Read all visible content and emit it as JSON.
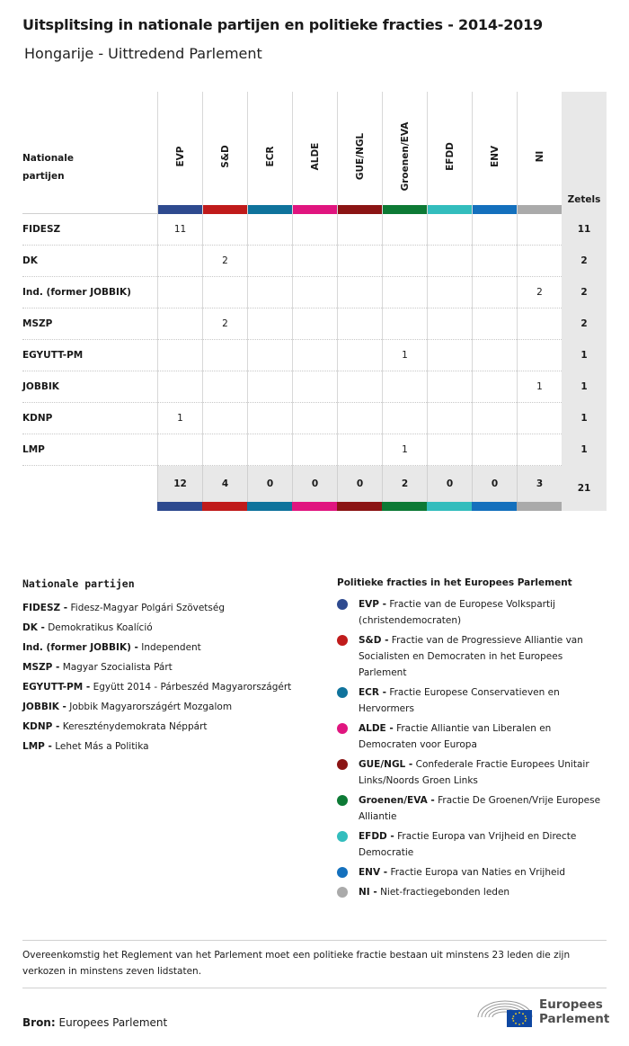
{
  "title": "Uitsplitsing in nationale partijen en politieke fracties - 2014-2019",
  "subtitle": "Hongarije - Uittredend Parlement",
  "table": {
    "row_header": "Nationale partijen",
    "total_header": "Zetels",
    "groups": [
      {
        "label": "EVP",
        "color": "#2e4a8f"
      },
      {
        "label": "S&D",
        "color": "#c01b1b"
      },
      {
        "label": "ECR",
        "color": "#0f739c"
      },
      {
        "label": "ALDE",
        "color": "#e0157f"
      },
      {
        "label": "GUE/NGL",
        "color": "#8b1414"
      },
      {
        "label": "Groenen/EVA",
        "color": "#0d7a35"
      },
      {
        "label": "EFDD",
        "color": "#33bdbd"
      },
      {
        "label": "ENV",
        "color": "#1470bd"
      },
      {
        "label": "NI",
        "color": "#aaaaaa"
      }
    ],
    "rows": [
      {
        "party": "FIDESZ",
        "values": [
          "11",
          "",
          "",
          "",
          "",
          "",
          "",
          "",
          ""
        ],
        "total": "11"
      },
      {
        "party": "DK",
        "values": [
          "",
          "2",
          "",
          "",
          "",
          "",
          "",
          "",
          ""
        ],
        "total": "2"
      },
      {
        "party": "Ind. (former JOBBIK)",
        "values": [
          "",
          "",
          "",
          "",
          "",
          "",
          "",
          "",
          "2"
        ],
        "total": "2"
      },
      {
        "party": "MSZP",
        "values": [
          "",
          "2",
          "",
          "",
          "",
          "",
          "",
          "",
          ""
        ],
        "total": "2"
      },
      {
        "party": "EGYUTT-PM",
        "values": [
          "",
          "",
          "",
          "",
          "",
          "1",
          "",
          "",
          ""
        ],
        "total": "1"
      },
      {
        "party": "JOBBIK",
        "values": [
          "",
          "",
          "",
          "",
          "",
          "",
          "",
          "",
          "1"
        ],
        "total": "1"
      },
      {
        "party": "KDNP",
        "values": [
          "1",
          "",
          "",
          "",
          "",
          "",
          "",
          "",
          ""
        ],
        "total": "1"
      },
      {
        "party": "LMP",
        "values": [
          "",
          "",
          "",
          "",
          "",
          "1",
          "",
          "",
          ""
        ],
        "total": "1"
      }
    ],
    "column_totals": [
      "12",
      "4",
      "0",
      "0",
      "0",
      "2",
      "0",
      "0",
      "3"
    ],
    "grand_total": "21"
  },
  "legend_parties": {
    "heading": "Nationale partijen",
    "items": [
      {
        "abbr": "FIDESZ -",
        "name": "Fidesz-Magyar Polgári Szövetség"
      },
      {
        "abbr": "DK -",
        "name": "Demokratikus Koalíció"
      },
      {
        "abbr": "Ind. (former JOBBIK) -",
        "name": "Independent"
      },
      {
        "abbr": "MSZP -",
        "name": "Magyar Szocialista Párt"
      },
      {
        "abbr": "EGYUTT-PM -",
        "name": "Együtt 2014 - Párbeszéd Magyarországért"
      },
      {
        "abbr": "JOBBIK -",
        "name": "Jobbik Magyarországért Mozgalom"
      },
      {
        "abbr": "KDNP -",
        "name": "Kereszténydemokrata Néppárt"
      },
      {
        "abbr": "LMP -",
        "name": "Lehet Más a Politika"
      }
    ]
  },
  "legend_groups": {
    "heading": "Politieke fracties in het Europees Parlement",
    "items": [
      {
        "abbr": "EVP -",
        "name": "Fractie van de Europese Volkspartij (christendemocraten)",
        "color": "#2e4a8f"
      },
      {
        "abbr": "S&D -",
        "name": "Fractie van de Progressieve Alliantie van Socialisten en Democraten in het Europees Parlement",
        "color": "#c01b1b"
      },
      {
        "abbr": "ECR -",
        "name": "Fractie Europese Conservatieven en Hervormers",
        "color": "#0f739c"
      },
      {
        "abbr": "ALDE -",
        "name": "Fractie Alliantie van Liberalen en Democraten voor Europa",
        "color": "#e0157f"
      },
      {
        "abbr": "GUE/NGL -",
        "name": "Confederale Fractie Europees Unitair Links/Noords Groen Links",
        "color": "#8b1414"
      },
      {
        "abbr": "Groenen/EVA -",
        "name": "Fractie De Groenen/Vrije Europese Alliantie",
        "color": "#0d7a35"
      },
      {
        "abbr": "EFDD -",
        "name": "Fractie Europa van Vrijheid en Directe Democratie",
        "color": "#33bdbd"
      },
      {
        "abbr": "ENV -",
        "name": "Fractie Europa van Naties en Vrijheid",
        "color": "#1470bd"
      },
      {
        "abbr": "NI -",
        "name": "Niet-fractiegebonden leden",
        "color": "#aaaaaa"
      }
    ]
  },
  "note": "Overeenkomstig het Reglement van het Parlement moet een politieke fractie bestaan uit minstens 23 leden die zijn verkozen in minstens zeven lidstaten.",
  "source": {
    "label": "Bron:",
    "value": "Europees Parlement"
  },
  "logo": {
    "line1": "Europees",
    "line2": "Parlement"
  }
}
